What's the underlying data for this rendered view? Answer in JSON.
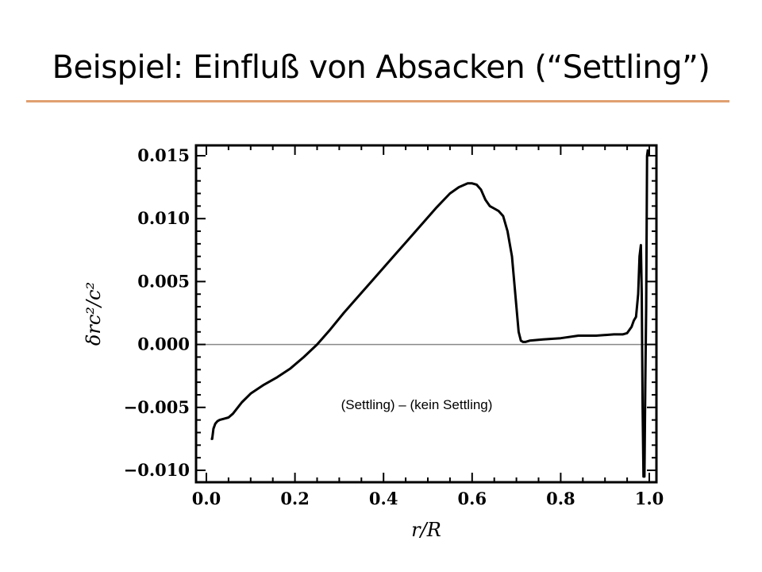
{
  "slide": {
    "title": "Beispiel: Einfluß von Absacken (“Settling”)"
  },
  "colors": {
    "accent_rule": "#e0a070",
    "curve": "#000000",
    "zero_line": "#888888"
  },
  "chart_data": {
    "type": "line",
    "title": "",
    "xlabel": "r/R",
    "ylabel": "δrc²/c²",
    "xlim": [
      0.0,
      1.0
    ],
    "ylim": [
      -0.0105,
      0.0155
    ],
    "xticks": [
      0.0,
      0.2,
      0.4,
      0.6,
      0.8,
      1.0
    ],
    "xtick_labels": [
      "0.0",
      "0.2",
      "0.4",
      "0.6",
      "0.8",
      "1.0"
    ],
    "yticks": [
      0.015,
      0.01,
      0.005,
      0.0,
      -0.005,
      -0.01
    ],
    "ytick_labels": [
      "0.015",
      "0.010",
      "0.005",
      "0.000",
      "−0.005",
      "−0.010"
    ],
    "grid": false,
    "reference_line_y": 0.0,
    "annotation": "(Settling) – (kein Settling)",
    "series": [
      {
        "x": [
          0.01,
          0.013,
          0.016,
          0.02,
          0.025,
          0.03,
          0.04,
          0.05,
          0.06,
          0.08,
          0.1,
          0.13,
          0.16,
          0.19,
          0.22,
          0.25,
          0.28,
          0.31,
          0.34,
          0.37,
          0.4,
          0.43,
          0.46,
          0.49,
          0.52,
          0.55,
          0.57,
          0.59,
          0.6,
          0.61,
          0.62,
          0.63,
          0.64,
          0.65,
          0.66,
          0.67,
          0.68,
          0.69,
          0.695,
          0.7,
          0.705,
          0.71,
          0.715,
          0.72,
          0.73,
          0.76,
          0.8,
          0.84,
          0.88,
          0.92,
          0.94,
          0.95,
          0.96,
          0.965,
          0.97,
          0.975,
          0.978,
          0.981,
          0.983,
          0.985,
          0.987,
          0.989,
          0.991,
          0.993,
          0.995,
          0.997
        ],
        "y": [
          -0.0075,
          -0.0075,
          -0.0067,
          -0.0063,
          -0.0061,
          -0.006,
          -0.0059,
          -0.0058,
          -0.0055,
          -0.0046,
          -0.0039,
          -0.0032,
          -0.0026,
          -0.0019,
          -0.001,
          0.0,
          0.0012,
          0.0025,
          0.0037,
          0.0049,
          0.0061,
          0.0073,
          0.0085,
          0.0097,
          0.0109,
          0.012,
          0.0125,
          0.0128,
          0.0128,
          0.0127,
          0.0123,
          0.0115,
          0.011,
          0.0108,
          0.0106,
          0.0102,
          0.009,
          0.007,
          0.005,
          0.003,
          0.001,
          0.0003,
          0.0002,
          0.0002,
          0.0003,
          0.0004,
          0.0005,
          0.0007,
          0.0007,
          0.0008,
          0.0008,
          0.0009,
          0.0014,
          0.0019,
          0.0022,
          0.004,
          0.007,
          0.0079,
          0.004,
          -0.005,
          -0.0105,
          -0.0105,
          -0.003,
          0.003,
          0.015,
          0.0155
        ]
      }
    ]
  }
}
